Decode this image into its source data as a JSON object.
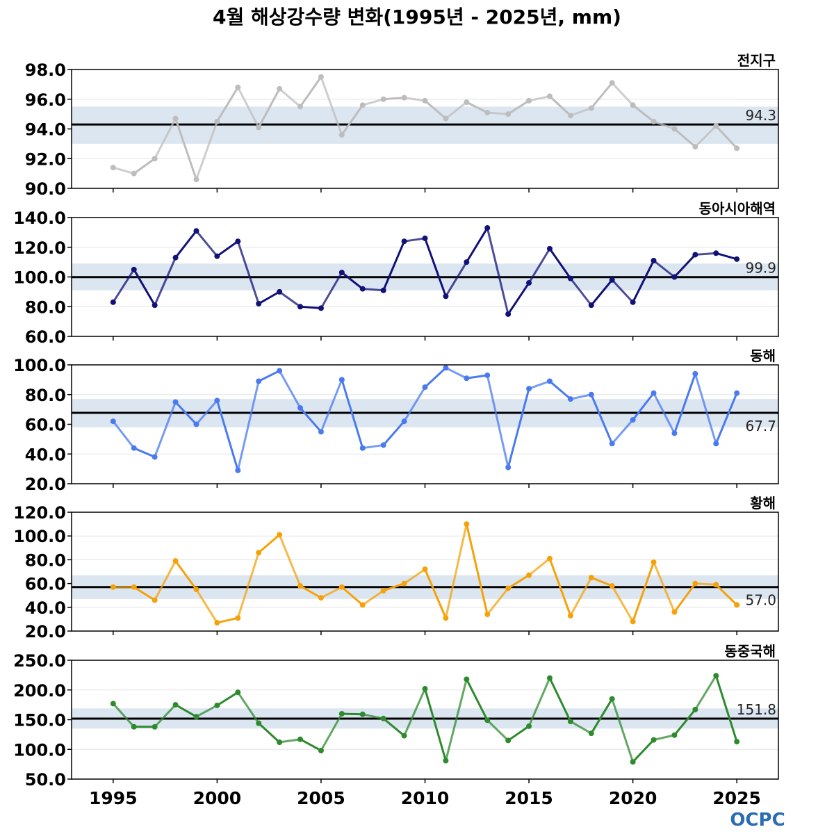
{
  "title": "4월 해상강수량 변화(1995년 - 2025년, mm)",
  "logo": "OCPC",
  "colors": {
    "band": "#dce6f1",
    "climatology_line": "#000000",
    "grid": "#e3e3e3"
  },
  "chart_data": [
    {
      "type": "line",
      "label": "전지구",
      "color": "#bdbdbd",
      "xlim": [
        1993,
        2027
      ],
      "ylim": [
        90,
        98
      ],
      "yticks": [
        90,
        92,
        94,
        96,
        98
      ],
      "ytick_labels": [
        "90.0",
        "92.0",
        "94.0",
        "96.0",
        "98.0"
      ],
      "climatology": 94.3,
      "climatology_label": "94.3",
      "band": [
        93.0,
        95.5
      ],
      "x": [
        1995,
        1996,
        1997,
        1998,
        1999,
        2000,
        2001,
        2002,
        2003,
        2004,
        2005,
        2006,
        2007,
        2008,
        2009,
        2010,
        2011,
        2012,
        2013,
        2014,
        2015,
        2016,
        2017,
        2018,
        2019,
        2020,
        2021,
        2022,
        2023,
        2024,
        2025
      ],
      "values": [
        91.4,
        91.0,
        92.0,
        94.7,
        90.6,
        94.5,
        96.8,
        94.1,
        96.7,
        95.5,
        97.5,
        93.6,
        95.6,
        96.0,
        96.1,
        95.9,
        94.7,
        95.8,
        95.1,
        95.0,
        95.9,
        96.2,
        94.9,
        95.4,
        97.1,
        95.6,
        94.5,
        94.0,
        92.8,
        94.2,
        92.7
      ]
    },
    {
      "type": "line",
      "label": "동아시아해역",
      "color": "#111177",
      "xlim": [
        1993,
        2027
      ],
      "ylim": [
        60,
        140
      ],
      "yticks": [
        60,
        80,
        100,
        120,
        140
      ],
      "ytick_labels": [
        "60.0",
        "80.0",
        "100.0",
        "120.0",
        "140.0"
      ],
      "climatology": 99.9,
      "climatology_label": "99.9",
      "band": [
        91,
        109
      ],
      "x": [
        1995,
        1996,
        1997,
        1998,
        1999,
        2000,
        2001,
        2002,
        2003,
        2004,
        2005,
        2006,
        2007,
        2008,
        2009,
        2010,
        2011,
        2012,
        2013,
        2014,
        2015,
        2016,
        2017,
        2018,
        2019,
        2020,
        2021,
        2022,
        2023,
        2024,
        2025
      ],
      "values": [
        83,
        105,
        81,
        113,
        131,
        114,
        124,
        82,
        90,
        80,
        79,
        103,
        92,
        91,
        124,
        126,
        87,
        110,
        133,
        75,
        96,
        119,
        99,
        81,
        98,
        83,
        111,
        100,
        115,
        116,
        112
      ]
    },
    {
      "type": "line",
      "label": "동해",
      "color": "#4a7af0",
      "xlim": [
        1993,
        2027
      ],
      "ylim": [
        20,
        100
      ],
      "yticks": [
        20,
        40,
        60,
        80,
        100
      ],
      "ytick_labels": [
        "20.0",
        "40.0",
        "60.0",
        "80.0",
        "100.0"
      ],
      "climatology": 67.7,
      "climatology_label": "67.7",
      "band": [
        58,
        77
      ],
      "x": [
        1995,
        1996,
        1997,
        1998,
        1999,
        2000,
        2001,
        2002,
        2003,
        2004,
        2005,
        2006,
        2007,
        2008,
        2009,
        2010,
        2011,
        2012,
        2013,
        2014,
        2015,
        2016,
        2017,
        2018,
        2019,
        2020,
        2021,
        2022,
        2023,
        2024,
        2025
      ],
      "values": [
        62,
        44,
        38,
        75,
        60,
        76,
        29,
        89,
        96,
        71,
        55,
        90,
        44,
        46,
        62,
        85,
        98,
        91,
        93,
        31,
        84,
        89,
        77,
        80,
        47,
        63,
        81,
        54,
        94,
        47,
        81
      ]
    },
    {
      "type": "line",
      "label": "황해",
      "color": "#f5a20a",
      "xlim": [
        1993,
        2027
      ],
      "ylim": [
        20,
        120
      ],
      "yticks": [
        20,
        40,
        60,
        80,
        100,
        120
      ],
      "ytick_labels": [
        "20.0",
        "40.0",
        "60.0",
        "80.0",
        "100.0",
        "120.0"
      ],
      "climatology": 57.0,
      "climatology_label": "57.0",
      "band": [
        47,
        67
      ],
      "x": [
        1995,
        1996,
        1997,
        1998,
        1999,
        2000,
        2001,
        2002,
        2003,
        2004,
        2005,
        2006,
        2007,
        2008,
        2009,
        2010,
        2011,
        2012,
        2013,
        2014,
        2015,
        2016,
        2017,
        2018,
        2019,
        2020,
        2021,
        2022,
        2023,
        2024,
        2025
      ],
      "values": [
        57,
        57,
        46,
        79,
        55,
        27,
        31,
        86,
        101,
        58,
        48,
        57,
        42,
        54,
        60,
        72,
        31,
        110,
        34,
        56,
        67,
        81,
        33,
        65,
        58,
        28,
        78,
        36,
        60,
        59,
        42
      ]
    },
    {
      "type": "line",
      "label": "동중국해",
      "color": "#2d8a2d",
      "xlim": [
        1993,
        2027
      ],
      "ylim": [
        50,
        250
      ],
      "yticks": [
        50,
        100,
        150,
        200,
        250
      ],
      "ytick_labels": [
        "50.0",
        "100.0",
        "150.0",
        "200.0",
        "250.0"
      ],
      "climatology": 151.8,
      "climatology_label": "151.8",
      "band": [
        135,
        169
      ],
      "x": [
        1995,
        1996,
        1997,
        1998,
        1999,
        2000,
        2001,
        2002,
        2003,
        2004,
        2005,
        2006,
        2007,
        2008,
        2009,
        2010,
        2011,
        2012,
        2013,
        2014,
        2015,
        2016,
        2017,
        2018,
        2019,
        2020,
        2021,
        2022,
        2023,
        2024,
        2025
      ],
      "values": [
        177,
        138,
        138,
        175,
        155,
        174,
        196,
        144,
        112,
        117,
        98,
        160,
        159,
        152,
        123,
        202,
        81,
        218,
        149,
        115,
        139,
        220,
        147,
        127,
        185,
        79,
        116,
        124,
        167,
        224,
        113
      ]
    }
  ],
  "x_axis": {
    "ticks": [
      1995,
      2000,
      2005,
      2010,
      2015,
      2020,
      2025
    ],
    "tick_labels": [
      "1995",
      "2000",
      "2005",
      "2010",
      "2015",
      "2020",
      "2025"
    ]
  }
}
